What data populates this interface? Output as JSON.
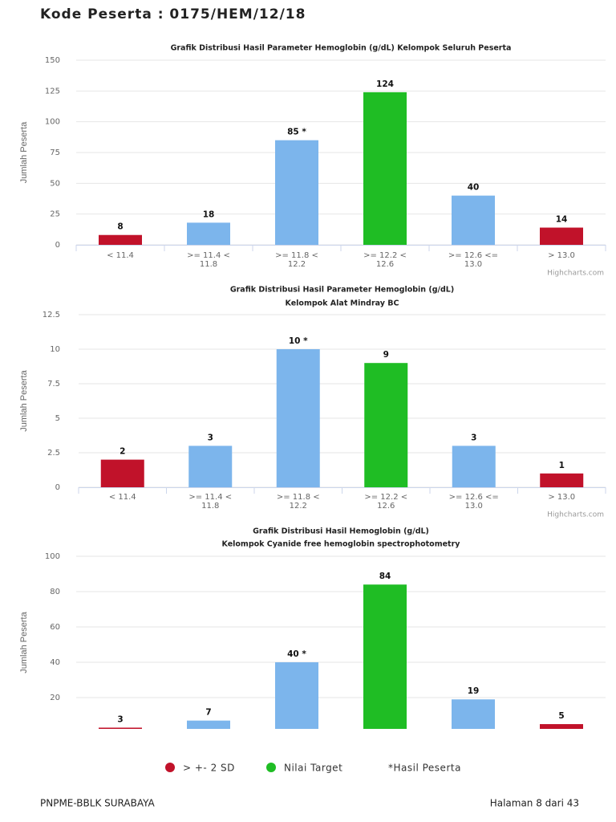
{
  "header": {
    "title": "Kode Peserta : 0175/HEM/12/18"
  },
  "chart_data": [
    {
      "type": "bar",
      "title": "Grafik Distribusi Hasil Parameter Hemoglobin (g/dL) Kelompok Seluruh Peserta",
      "y_label": "Jumlah Peserta",
      "categories": [
        [
          "< 11.4"
        ],
        [
          ">= 11.4 <",
          "11.8"
        ],
        [
          ">= 11.8 <",
          "12.2"
        ],
        [
          ">= 12.2 <",
          "12.6"
        ],
        [
          ">= 12.6 <=",
          "13.0"
        ],
        [
          "> 13.0"
        ]
      ],
      "values": [
        8,
        18,
        85,
        124,
        40,
        14
      ],
      "value_labels": [
        "8",
        "18",
        "85 *",
        "124",
        "40",
        "14"
      ],
      "colors": [
        "#c1122a",
        "#7cb5ec",
        "#7cb5ec",
        "#1fbd24",
        "#7cb5ec",
        "#c1122a"
      ],
      "ylim": [
        0,
        150
      ],
      "yticks": [
        0,
        25,
        50,
        75,
        100,
        125,
        150
      ],
      "grid": true,
      "credits": "Highcharts.com"
    },
    {
      "type": "bar",
      "title": "Grafik Distribusi Hasil Parameter Hemoglobin (g/dL)",
      "subtitle": "Kelompok Alat Mindray BC",
      "y_label": "Jumlah Peserta",
      "categories": [
        [
          "< 11.4"
        ],
        [
          ">= 11.4 <",
          "11.8"
        ],
        [
          ">= 11.8 <",
          "12.2"
        ],
        [
          ">= 12.2 <",
          "12.6"
        ],
        [
          ">= 12.6 <=",
          "13.0"
        ],
        [
          "> 13.0"
        ]
      ],
      "values": [
        2,
        3,
        10,
        9,
        3,
        1
      ],
      "value_labels": [
        "2",
        "3",
        "10 *",
        "9",
        "3",
        "1"
      ],
      "colors": [
        "#c1122a",
        "#7cb5ec",
        "#7cb5ec",
        "#1fbd24",
        "#7cb5ec",
        "#c1122a"
      ],
      "ylim": [
        0,
        12.5
      ],
      "yticks": [
        0,
        2.5,
        5,
        7.5,
        10,
        12.5
      ],
      "grid": true,
      "credits": "Highcharts.com"
    },
    {
      "type": "bar",
      "title": "Grafik Distribusi Hasil Hemoglobin (g/dL)",
      "subtitle": "Kelompok Cyanide free hemoglobin spectrophotometry",
      "y_label": "Jumlah Peserta",
      "categories": [
        null,
        null,
        null,
        null,
        null,
        null
      ],
      "values": [
        3,
        7,
        40,
        84,
        19,
        5
      ],
      "value_labels": [
        "3",
        "7",
        "40 *",
        "84",
        "19",
        "5"
      ],
      "colors": [
        "#c1122a",
        "#7cb5ec",
        "#7cb5ec",
        "#1fbd24",
        "#7cb5ec",
        "#c1122a"
      ],
      "ylim": [
        2.3,
        100
      ],
      "yticks": [
        20,
        40,
        60,
        80,
        100
      ],
      "grid": true
    }
  ],
  "legend": [
    {
      "name": "> +- 2 SD",
      "color": "#c1122a"
    },
    {
      "name": "Nilai Target",
      "color": "#1fbd24"
    },
    {
      "name": "*Hasil Peserta"
    }
  ],
  "footer": {
    "left": "PNPME-BBLK SURABAYA",
    "right": "Halaman 8 dari 43"
  }
}
